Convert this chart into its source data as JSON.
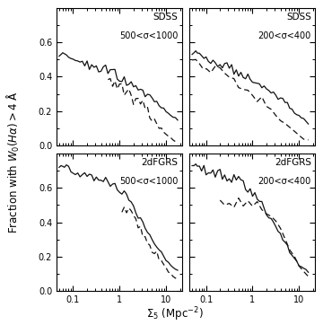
{
  "xlabel": "$\\Sigma_5$ (Mpc$^{-2}$)",
  "ylabel": "Fraction with $W_0(H\\alpha)>4$ Å",
  "xlim": [
    0.044,
    22.0
  ],
  "ylim": [
    0.0,
    0.8
  ],
  "panels": [
    {
      "label": "SDSS",
      "sublabel": "500<σ<1000",
      "row": 0,
      "col": 0,
      "solid_x": [
        0.05,
        0.055,
        0.06,
        0.065,
        0.072,
        0.08,
        0.09,
        0.1,
        0.112,
        0.126,
        0.141,
        0.158,
        0.178,
        0.2,
        0.224,
        0.251,
        0.282,
        0.316,
        0.355,
        0.398,
        0.447,
        0.501,
        0.562,
        0.631,
        0.708,
        0.794,
        0.891,
        1.0,
        1.122,
        1.259,
        1.413,
        1.585,
        1.778,
        1.995,
        2.239,
        2.512,
        2.818,
        3.162,
        3.548,
        3.981,
        4.467,
        5.012,
        5.623,
        6.31,
        7.079,
        7.943,
        8.913,
        10.0,
        11.22,
        12.59,
        14.13,
        15.85,
        17.78
      ],
      "solid_y": [
        0.52,
        0.53,
        0.55,
        0.54,
        0.54,
        0.53,
        0.52,
        0.51,
        0.5,
        0.49,
        0.49,
        0.48,
        0.48,
        0.47,
        0.47,
        0.46,
        0.46,
        0.46,
        0.45,
        0.45,
        0.44,
        0.44,
        0.43,
        0.43,
        0.42,
        0.42,
        0.41,
        0.4,
        0.39,
        0.38,
        0.37,
        0.36,
        0.35,
        0.34,
        0.34,
        0.33,
        0.32,
        0.31,
        0.3,
        0.29,
        0.28,
        0.27,
        0.26,
        0.25,
        0.24,
        0.22,
        0.21,
        0.2,
        0.19,
        0.18,
        0.17,
        0.16,
        0.15
      ],
      "solid_var": [
        0.0,
        0.0,
        0.01,
        0.015,
        0.018,
        0.02,
        0.022,
        0.024,
        0.025,
        0.026,
        0.027,
        0.028,
        0.028,
        0.029,
        0.029,
        0.03,
        0.03,
        0.03,
        0.03,
        0.03,
        0.03,
        0.03,
        0.03,
        0.03,
        0.029,
        0.029,
        0.028,
        0.028,
        0.027,
        0.026,
        0.025,
        0.024,
        0.023,
        0.022,
        0.021,
        0.02,
        0.019,
        0.018,
        0.017,
        0.016,
        0.015,
        0.014,
        0.013,
        0.012,
        0.011,
        0.01,
        0.009,
        0.008,
        0.007,
        0.007,
        0.006,
        0.006,
        0.005
      ],
      "dashed_x": [
        0.562,
        0.631,
        0.708,
        0.794,
        0.891,
        1.0,
        1.122,
        1.259,
        1.413,
        1.585,
        1.778,
        1.995,
        2.239,
        2.512,
        2.818,
        3.162,
        3.548,
        3.981,
        4.467,
        5.012,
        5.623,
        6.31,
        7.079,
        7.943,
        8.913,
        10.0,
        11.22,
        12.59,
        14.13,
        15.85,
        17.78
      ],
      "dashed_y": [
        0.4,
        0.39,
        0.38,
        0.37,
        0.36,
        0.35,
        0.34,
        0.33,
        0.32,
        0.31,
        0.3,
        0.28,
        0.27,
        0.26,
        0.24,
        0.23,
        0.21,
        0.2,
        0.18,
        0.16,
        0.14,
        0.13,
        0.11,
        0.09,
        0.08,
        0.06,
        0.05,
        0.04,
        0.03,
        0.02,
        0.01
      ],
      "dashed_var": [
        0.035,
        0.038,
        0.04,
        0.042,
        0.044,
        0.045,
        0.046,
        0.047,
        0.048,
        0.048,
        0.047,
        0.046,
        0.044,
        0.042,
        0.04,
        0.037,
        0.034,
        0.031,
        0.028,
        0.025,
        0.022,
        0.019,
        0.016,
        0.013,
        0.011,
        0.009,
        0.008,
        0.007,
        0.006,
        0.005,
        0.004
      ]
    },
    {
      "label": "SDSS",
      "sublabel": "200<σ<400",
      "row": 0,
      "col": 1,
      "solid_x": [
        0.05,
        0.055,
        0.06,
        0.065,
        0.072,
        0.08,
        0.09,
        0.1,
        0.112,
        0.126,
        0.141,
        0.158,
        0.178,
        0.2,
        0.224,
        0.251,
        0.282,
        0.316,
        0.355,
        0.398,
        0.447,
        0.501,
        0.562,
        0.631,
        0.708,
        0.794,
        0.891,
        1.0,
        1.122,
        1.259,
        1.413,
        1.585,
        1.778,
        1.995,
        2.239,
        2.512,
        2.818,
        3.162,
        3.548,
        3.981,
        4.467,
        5.012,
        5.623,
        6.31,
        7.079,
        7.943,
        8.913,
        10.0,
        11.22,
        12.59,
        14.13,
        15.85
      ],
      "solid_y": [
        0.53,
        0.54,
        0.55,
        0.54,
        0.54,
        0.53,
        0.52,
        0.51,
        0.5,
        0.49,
        0.49,
        0.48,
        0.48,
        0.47,
        0.47,
        0.46,
        0.46,
        0.45,
        0.45,
        0.44,
        0.44,
        0.43,
        0.43,
        0.42,
        0.41,
        0.41,
        0.4,
        0.39,
        0.38,
        0.37,
        0.36,
        0.35,
        0.34,
        0.33,
        0.32,
        0.31,
        0.3,
        0.29,
        0.28,
        0.27,
        0.26,
        0.25,
        0.24,
        0.22,
        0.21,
        0.19,
        0.18,
        0.17,
        0.16,
        0.15,
        0.14,
        0.13
      ],
      "solid_var": [
        0.0,
        0.0,
        0.01,
        0.015,
        0.018,
        0.02,
        0.022,
        0.024,
        0.025,
        0.026,
        0.027,
        0.028,
        0.028,
        0.029,
        0.029,
        0.03,
        0.03,
        0.03,
        0.03,
        0.03,
        0.03,
        0.03,
        0.03,
        0.03,
        0.029,
        0.029,
        0.028,
        0.028,
        0.027,
        0.026,
        0.025,
        0.024,
        0.023,
        0.022,
        0.021,
        0.02,
        0.019,
        0.018,
        0.017,
        0.016,
        0.015,
        0.014,
        0.013,
        0.012,
        0.011,
        0.01,
        0.009,
        0.008,
        0.007,
        0.007,
        0.006,
        0.006
      ],
      "dashed_x": [
        0.05,
        0.06,
        0.072,
        0.086,
        0.103,
        0.126,
        0.158,
        0.2,
        0.251,
        0.316,
        0.398,
        0.501,
        0.631,
        0.794,
        1.0,
        1.259,
        1.585,
        1.995,
        2.512,
        3.162,
        3.981,
        5.012,
        6.31,
        7.943,
        10.0,
        12.59,
        15.85
      ],
      "dashed_y": [
        0.5,
        0.49,
        0.48,
        0.47,
        0.46,
        0.45,
        0.43,
        0.42,
        0.4,
        0.39,
        0.37,
        0.36,
        0.34,
        0.32,
        0.3,
        0.28,
        0.26,
        0.23,
        0.21,
        0.18,
        0.15,
        0.13,
        0.1,
        0.08,
        0.06,
        0.04,
        0.03
      ],
      "dashed_var": [
        0.01,
        0.015,
        0.02,
        0.025,
        0.028,
        0.03,
        0.032,
        0.034,
        0.035,
        0.036,
        0.036,
        0.035,
        0.034,
        0.032,
        0.03,
        0.027,
        0.024,
        0.021,
        0.018,
        0.015,
        0.012,
        0.01,
        0.008,
        0.006,
        0.005,
        0.004,
        0.003
      ]
    },
    {
      "label": "2dFGRS",
      "sublabel": "500<σ<1000",
      "row": 1,
      "col": 0,
      "solid_x": [
        0.05,
        0.055,
        0.06,
        0.065,
        0.072,
        0.08,
        0.09,
        0.1,
        0.112,
        0.126,
        0.141,
        0.158,
        0.178,
        0.2,
        0.224,
        0.251,
        0.282,
        0.316,
        0.355,
        0.398,
        0.447,
        0.501,
        0.562,
        0.631,
        0.708,
        0.794,
        0.891,
        1.0,
        1.122,
        1.259,
        1.413,
        1.585,
        1.778,
        1.995,
        2.239,
        2.512,
        2.818,
        3.162,
        3.548,
        3.981,
        4.467,
        5.012,
        5.623,
        6.31,
        7.079,
        7.943,
        8.913,
        10.0,
        11.22,
        12.59,
        14.13,
        15.85,
        17.78
      ],
      "solid_y": [
        0.72,
        0.73,
        0.73,
        0.72,
        0.72,
        0.71,
        0.71,
        0.7,
        0.7,
        0.69,
        0.69,
        0.68,
        0.68,
        0.68,
        0.67,
        0.67,
        0.67,
        0.66,
        0.66,
        0.65,
        0.65,
        0.65,
        0.64,
        0.63,
        0.62,
        0.61,
        0.6,
        0.59,
        0.57,
        0.56,
        0.54,
        0.52,
        0.5,
        0.48,
        0.46,
        0.44,
        0.42,
        0.4,
        0.37,
        0.35,
        0.33,
        0.3,
        0.28,
        0.26,
        0.24,
        0.22,
        0.2,
        0.18,
        0.17,
        0.15,
        0.14,
        0.13,
        0.12
      ],
      "solid_var": [
        0.0,
        0.0,
        0.01,
        0.015,
        0.018,
        0.02,
        0.022,
        0.024,
        0.025,
        0.026,
        0.027,
        0.028,
        0.028,
        0.029,
        0.029,
        0.03,
        0.03,
        0.03,
        0.03,
        0.03,
        0.03,
        0.03,
        0.03,
        0.03,
        0.029,
        0.029,
        0.028,
        0.028,
        0.027,
        0.026,
        0.025,
        0.024,
        0.023,
        0.022,
        0.021,
        0.02,
        0.019,
        0.018,
        0.017,
        0.016,
        0.015,
        0.014,
        0.013,
        0.012,
        0.011,
        0.01,
        0.009,
        0.008,
        0.007,
        0.007,
        0.006,
        0.006,
        0.005
      ],
      "dashed_x": [
        1.122,
        1.259,
        1.413,
        1.585,
        1.778,
        1.995,
        2.239,
        2.512,
        2.818,
        3.162,
        3.548,
        3.981,
        4.467,
        5.012,
        5.623,
        6.31,
        7.079,
        7.943,
        8.913,
        10.0,
        11.22,
        12.59,
        14.13,
        15.85,
        17.78
      ],
      "dashed_y": [
        0.5,
        0.49,
        0.47,
        0.46,
        0.44,
        0.42,
        0.4,
        0.38,
        0.36,
        0.33,
        0.31,
        0.29,
        0.27,
        0.25,
        0.23,
        0.21,
        0.19,
        0.17,
        0.15,
        0.13,
        0.11,
        0.1,
        0.09,
        0.08,
        0.07
      ],
      "dashed_var": [
        0.05,
        0.052,
        0.054,
        0.055,
        0.055,
        0.054,
        0.052,
        0.05,
        0.047,
        0.044,
        0.041,
        0.037,
        0.033,
        0.029,
        0.025,
        0.022,
        0.019,
        0.016,
        0.013,
        0.011,
        0.009,
        0.008,
        0.007,
        0.006,
        0.005
      ]
    },
    {
      "label": "2dFGRS",
      "sublabel": "200<σ<400",
      "row": 1,
      "col": 1,
      "solid_x": [
        0.05,
        0.055,
        0.06,
        0.065,
        0.072,
        0.08,
        0.09,
        0.1,
        0.112,
        0.126,
        0.141,
        0.158,
        0.178,
        0.2,
        0.224,
        0.251,
        0.282,
        0.316,
        0.355,
        0.398,
        0.447,
        0.501,
        0.562,
        0.631,
        0.708,
        0.794,
        0.891,
        1.0,
        1.122,
        1.259,
        1.413,
        1.585,
        1.778,
        1.995,
        2.239,
        2.512,
        2.818,
        3.162,
        3.548,
        3.981,
        4.467,
        5.012,
        5.623,
        6.31,
        7.079,
        7.943,
        8.913,
        10.0,
        11.22,
        12.59,
        14.13,
        15.85
      ],
      "solid_y": [
        0.73,
        0.73,
        0.73,
        0.72,
        0.72,
        0.71,
        0.71,
        0.7,
        0.7,
        0.69,
        0.69,
        0.68,
        0.68,
        0.68,
        0.67,
        0.67,
        0.67,
        0.66,
        0.66,
        0.65,
        0.65,
        0.64,
        0.63,
        0.62,
        0.61,
        0.6,
        0.59,
        0.57,
        0.56,
        0.54,
        0.52,
        0.5,
        0.48,
        0.46,
        0.44,
        0.42,
        0.4,
        0.37,
        0.35,
        0.33,
        0.3,
        0.28,
        0.26,
        0.23,
        0.21,
        0.19,
        0.17,
        0.15,
        0.14,
        0.13,
        0.12,
        0.11
      ],
      "solid_var": [
        0.0,
        0.0,
        0.01,
        0.015,
        0.018,
        0.02,
        0.022,
        0.024,
        0.025,
        0.026,
        0.027,
        0.028,
        0.028,
        0.029,
        0.029,
        0.03,
        0.03,
        0.03,
        0.03,
        0.03,
        0.03,
        0.03,
        0.03,
        0.03,
        0.029,
        0.029,
        0.028,
        0.028,
        0.027,
        0.026,
        0.025,
        0.024,
        0.023,
        0.022,
        0.021,
        0.02,
        0.019,
        0.018,
        0.017,
        0.016,
        0.015,
        0.014,
        0.013,
        0.012,
        0.011,
        0.01,
        0.009,
        0.008,
        0.007,
        0.007,
        0.006,
        0.006
      ],
      "dashed_x": [
        0.2,
        0.251,
        0.316,
        0.398,
        0.501,
        0.631,
        0.794,
        1.0,
        1.259,
        1.585,
        1.995,
        2.512,
        3.162,
        3.981,
        5.012,
        6.31,
        7.943,
        10.0,
        12.59,
        15.85
      ],
      "dashed_y": [
        0.52,
        0.52,
        0.51,
        0.51,
        0.51,
        0.5,
        0.5,
        0.5,
        0.49,
        0.48,
        0.46,
        0.43,
        0.39,
        0.35,
        0.3,
        0.25,
        0.2,
        0.15,
        0.11,
        0.08
      ],
      "dashed_var": [
        0.03,
        0.032,
        0.034,
        0.036,
        0.037,
        0.038,
        0.038,
        0.038,
        0.037,
        0.035,
        0.032,
        0.029,
        0.025,
        0.021,
        0.017,
        0.014,
        0.011,
        0.009,
        0.007,
        0.005
      ]
    }
  ],
  "line_color": "#111111",
  "label_fontsize": 7.5,
  "sublabel_fontsize": 7.0,
  "tick_labelsize": 7.0,
  "axis_labelsize": 8.5
}
